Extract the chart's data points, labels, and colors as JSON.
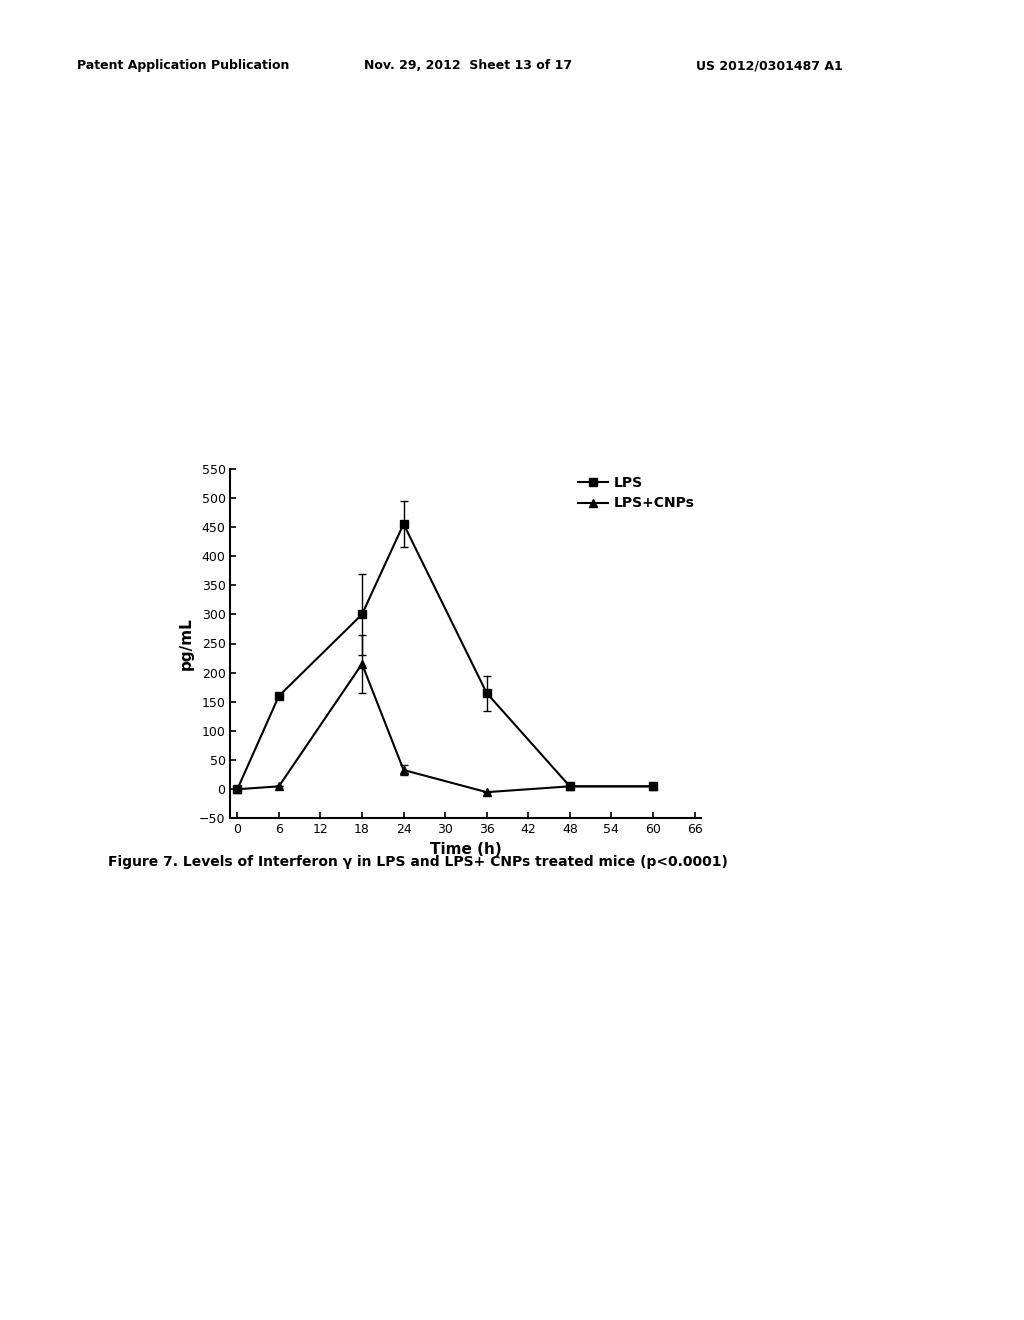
{
  "lps_x": [
    0,
    6,
    18,
    24,
    36,
    48,
    60
  ],
  "lps_y": [
    0,
    160,
    300,
    455,
    165,
    5,
    5
  ],
  "lps_yerr": [
    0,
    0,
    70,
    40,
    30,
    5,
    0
  ],
  "cnps_x": [
    0,
    6,
    18,
    24,
    36,
    48,
    60
  ],
  "cnps_y": [
    0,
    5,
    215,
    33,
    -5,
    5,
    5
  ],
  "cnps_yerr": [
    0,
    0,
    50,
    8,
    0,
    0,
    0
  ],
  "xlabel": "Time (h)",
  "ylabel": "pg/mL",
  "ylim": [
    -50,
    550
  ],
  "xlim": [
    -1,
    67
  ],
  "yticks": [
    -50,
    0,
    50,
    100,
    150,
    200,
    250,
    300,
    350,
    400,
    450,
    500,
    550
  ],
  "xticks": [
    0,
    6,
    12,
    18,
    24,
    30,
    36,
    42,
    48,
    54,
    60,
    66
  ],
  "legend_labels": [
    "LPS",
    "LPS+CNPs"
  ],
  "header_left": "Patent Application Publication",
  "header_center": "Nov. 29, 2012  Sheet 13 of 17",
  "header_right": "US 2012/0301487 A1",
  "caption": "Figure 7. Levels of Interferon γ in LPS and LPS+ CNPs treated mice (p<0.0001)",
  "background_color": "#ffffff",
  "line_color": "#000000",
  "marker_lps": "s",
  "marker_cnps": "^",
  "markersize": 6,
  "linewidth": 1.5,
  "capsize": 3
}
